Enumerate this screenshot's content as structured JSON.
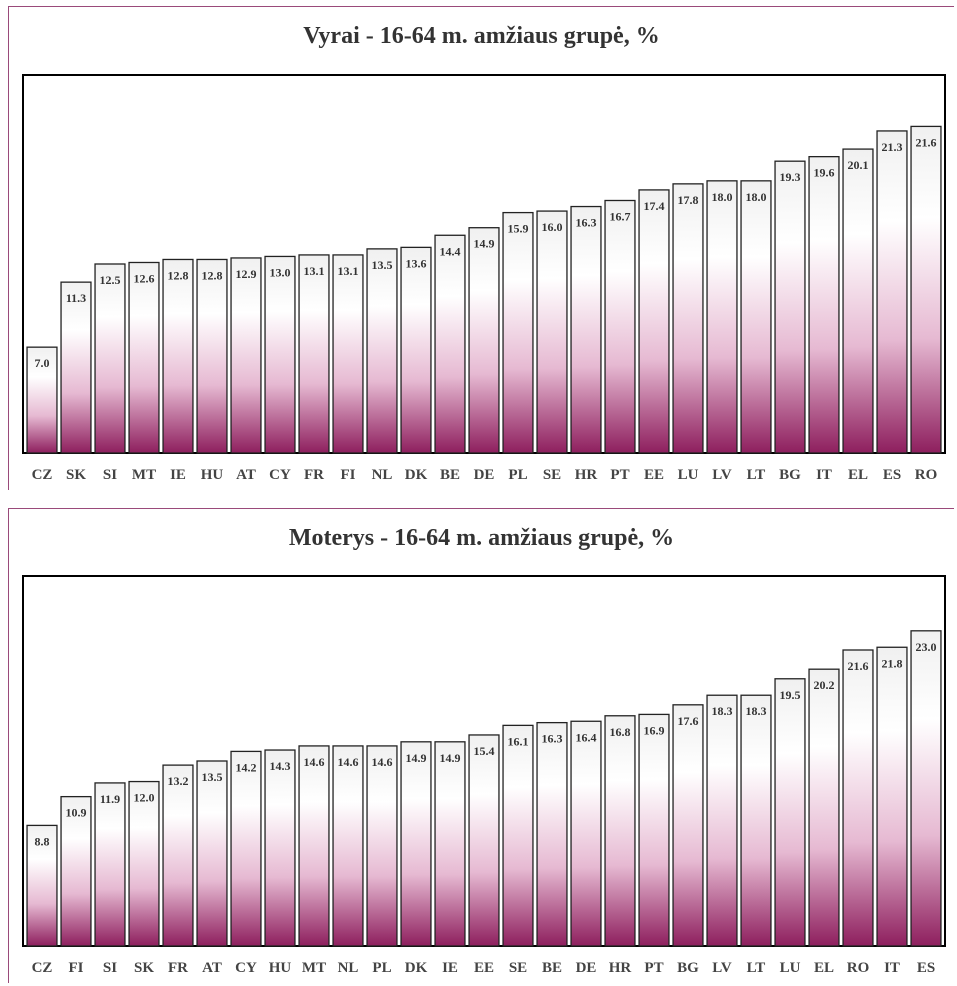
{
  "chart_data": [
    {
      "type": "bar",
      "title": "Vyrai - 16-64 m. amžiaus grupė, %",
      "categories": [
        "CZ",
        "SK",
        "SI",
        "MT",
        "IE",
        "HU",
        "AT",
        "CY",
        "FR",
        "FI",
        "NL",
        "DK",
        "BE",
        "DE",
        "PL",
        "SE",
        "HR",
        "PT",
        "EE",
        "LU",
        "LV",
        "LT",
        "BG",
        "IT",
        "EL",
        "ES",
        "RO"
      ],
      "values": [
        7.0,
        11.3,
        12.5,
        12.6,
        12.8,
        12.8,
        12.9,
        13.0,
        13.1,
        13.1,
        13.5,
        13.6,
        14.4,
        14.9,
        15.9,
        16.0,
        16.3,
        16.7,
        17.4,
        17.8,
        18.0,
        18.0,
        19.3,
        19.6,
        20.1,
        21.3,
        21.6
      ],
      "labels": [
        "7.0",
        "11.3",
        "12.5",
        "12.6",
        "12.8",
        "12.8",
        "12.9",
        "13.0",
        "13.1",
        "13.1",
        "13.5",
        "13.6",
        "14.4",
        "14.9",
        "15.9",
        "16.0",
        "16.3",
        "16.7",
        "17.4",
        "17.8",
        "18.0",
        "18.0",
        "19.3",
        "19.6",
        "20.1",
        "21.3",
        "21.6"
      ],
      "ylim": [
        0,
        25
      ],
      "grid": false,
      "colors": {
        "bar_top": "#ffffff",
        "bar_bottom": "#8e1f5e",
        "outline": "#222222"
      }
    },
    {
      "type": "bar",
      "title": "Moterys - 16-64 m. amžiaus grupė, %",
      "categories": [
        "CZ",
        "FI",
        "SI",
        "SK",
        "FR",
        "AT",
        "CY",
        "HU",
        "MT",
        "NL",
        "PL",
        "DK",
        "IE",
        "EE",
        "SE",
        "BE",
        "DE",
        "HR",
        "PT",
        "BG",
        "LV",
        "LT",
        "LU",
        "EL",
        "RO",
        "IT",
        "ES"
      ],
      "values": [
        8.8,
        10.9,
        11.9,
        12.0,
        13.2,
        13.5,
        14.2,
        14.3,
        14.6,
        14.6,
        14.6,
        14.9,
        14.9,
        15.4,
        16.1,
        16.3,
        16.4,
        16.8,
        16.9,
        17.6,
        18.3,
        18.3,
        19.5,
        20.2,
        21.6,
        21.8,
        23.0
      ],
      "labels": [
        "8.8",
        "10.9",
        "11.9",
        "12.0",
        "13.2",
        "13.5",
        "14.2",
        "14.3",
        "14.6",
        "14.6",
        "14.6",
        "14.9",
        "14.9",
        "15.4",
        "16.1",
        "16.3",
        "16.4",
        "16.8",
        "16.9",
        "17.6",
        "18.3",
        "18.3",
        "19.5",
        "20.2",
        "21.6",
        "21.8",
        "23.0"
      ],
      "ylim": [
        0,
        27
      ],
      "grid": false,
      "colors": {
        "bar_top": "#ffffff",
        "bar_bottom": "#8e1f5e",
        "outline": "#222222"
      }
    }
  ]
}
